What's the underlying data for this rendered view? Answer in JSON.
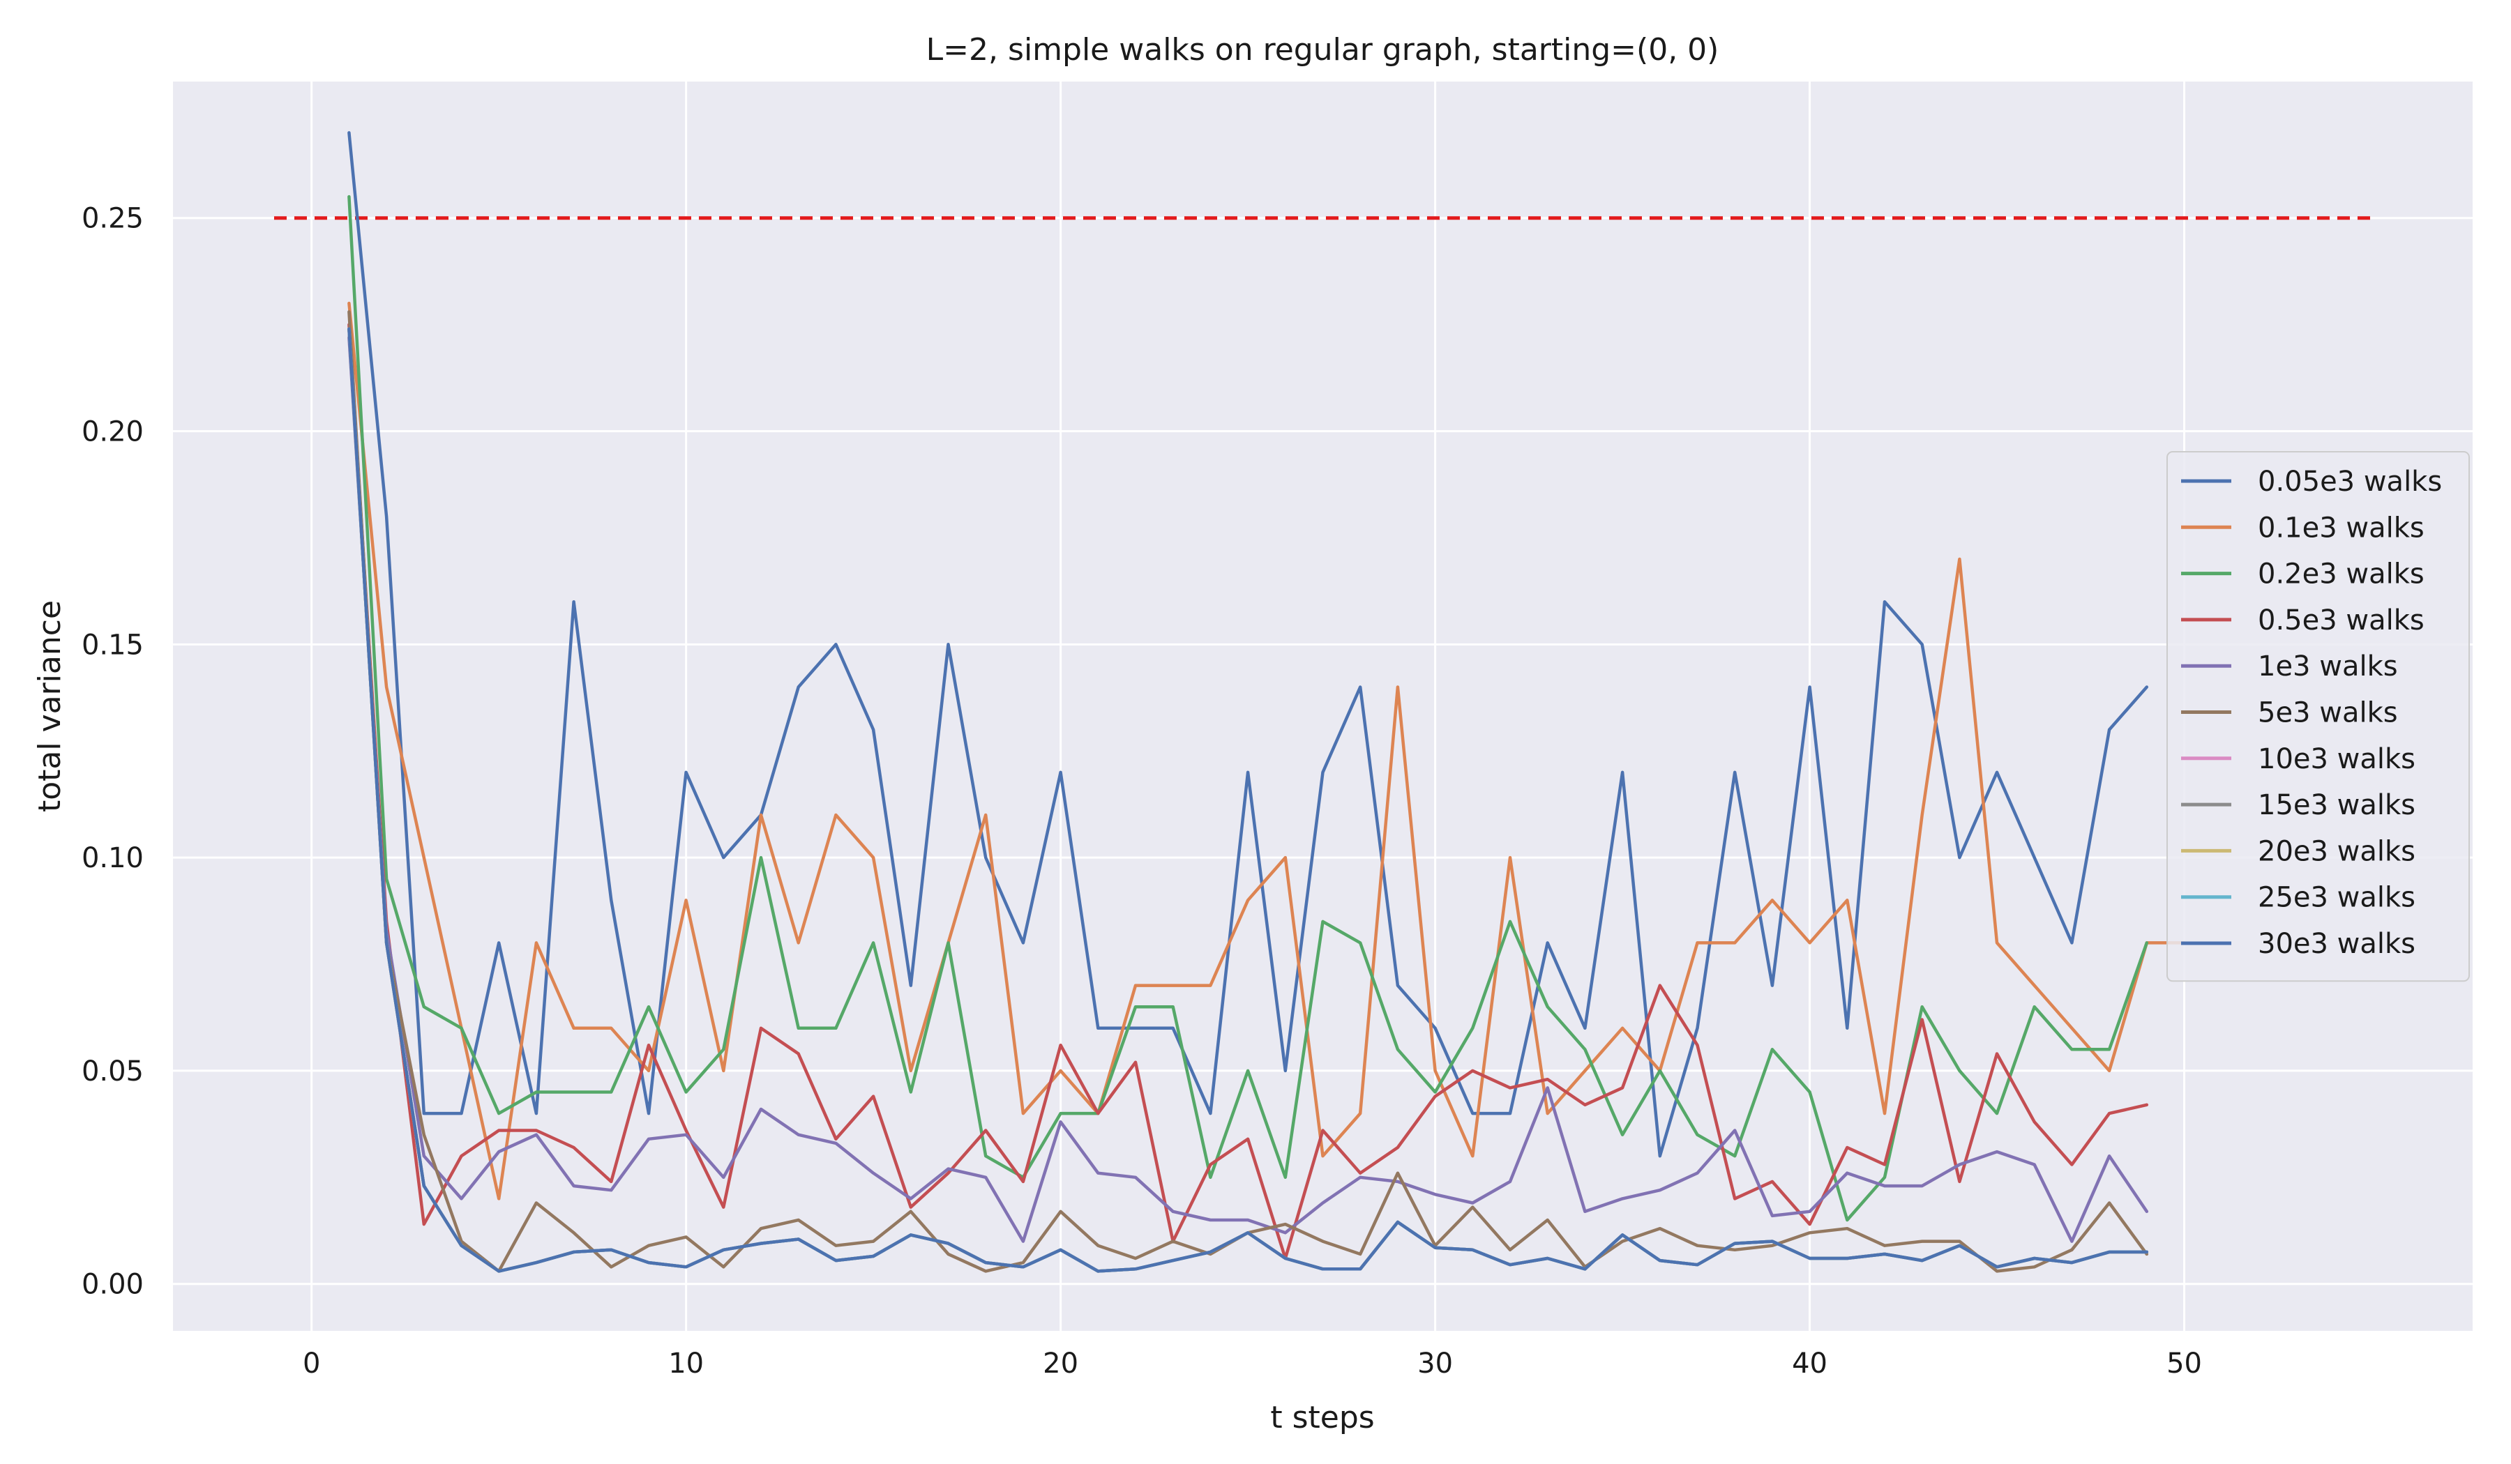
{
  "chart_data": {
    "type": "line",
    "title": "L=2, simple walks on regular graph, starting=(0, 0)",
    "xlabel": "t steps",
    "ylabel": "total variance",
    "xlim": [
      -3.7,
      57.7
    ],
    "ylim": [
      -0.011,
      0.282
    ],
    "xticks": [
      0,
      10,
      20,
      30,
      40,
      50
    ],
    "yticks": [
      0.0,
      0.05,
      0.1,
      0.15,
      0.2,
      0.25
    ],
    "ytick_labels": [
      "0.00",
      "0.05",
      "0.10",
      "0.15",
      "0.20",
      "0.25"
    ],
    "grid": true,
    "legend_position": "center-right",
    "reference_line": {
      "y": 0.25,
      "x_range": [
        -1,
        55
      ],
      "color": "#e31a1c",
      "style": "dashed"
    },
    "x": [
      1,
      2,
      3,
      4,
      5,
      6,
      7,
      8,
      9,
      10,
      11,
      12,
      13,
      14,
      15,
      16,
      17,
      18,
      19,
      20,
      21,
      22,
      23,
      24,
      25,
      26,
      27,
      28,
      29,
      30,
      31,
      32,
      33,
      34,
      35,
      36,
      37,
      38,
      39,
      40,
      41,
      42,
      43,
      44,
      45,
      46,
      47,
      48,
      49,
      50
    ],
    "series": [
      {
        "name": "0.05e3 walks",
        "color": "#4c72b0",
        "values": [
          0.27,
          0.18,
          0.04,
          0.04,
          0.08,
          0.04,
          0.16,
          0.09,
          0.04,
          0.12,
          0.1,
          0.11,
          0.14,
          0.15,
          0.13,
          0.07,
          0.15,
          0.1,
          0.08,
          0.12,
          0.06,
          0.06,
          0.06,
          0.04,
          0.12,
          0.05,
          0.12,
          0.14,
          0.07,
          0.06,
          0.04,
          0.04,
          0.08,
          0.06,
          0.12,
          0.03,
          0.06,
          0.12,
          0.07,
          0.14,
          0.06,
          0.16,
          0.15,
          0.1,
          0.12,
          0.1,
          0.08,
          0.13,
          0.14,
          null
        ]
      },
      {
        "name": "0.1e3 walks",
        "color": "#dd8452",
        "values": [
          0.23,
          0.14,
          0.1,
          0.06,
          0.02,
          0.08,
          0.06,
          0.06,
          0.05,
          0.09,
          0.05,
          0.11,
          0.08,
          0.11,
          0.1,
          0.05,
          0.08,
          0.11,
          0.04,
          0.05,
          0.04,
          0.07,
          0.07,
          0.07,
          0.09,
          0.1,
          0.03,
          0.04,
          0.14,
          0.05,
          0.03,
          0.1,
          0.04,
          0.05,
          0.06,
          0.05,
          0.08,
          0.08,
          0.09,
          0.08,
          0.09,
          0.04,
          0.11,
          0.17,
          0.08,
          0.07,
          0.06,
          0.05,
          0.08,
          0.08
        ]
      },
      {
        "name": "0.2e3 walks",
        "color": "#55a868",
        "values": [
          0.255,
          0.095,
          0.065,
          0.06,
          0.04,
          0.045,
          0.045,
          0.045,
          0.065,
          0.045,
          0.055,
          0.1,
          0.06,
          0.06,
          0.08,
          0.045,
          0.08,
          0.03,
          0.025,
          0.04,
          0.04,
          0.065,
          0.065,
          0.025,
          0.05,
          0.025,
          0.085,
          0.08,
          0.055,
          0.045,
          0.06,
          0.085,
          0.065,
          0.055,
          0.035,
          0.05,
          0.035,
          0.03,
          0.055,
          0.045,
          0.015,
          0.025,
          0.065,
          0.05,
          0.04,
          0.065,
          0.055,
          0.055,
          0.08,
          null
        ]
      },
      {
        "name": "0.5e3 walks",
        "color": "#c44e52",
        "values": [
          0.225,
          0.085,
          0.014,
          0.03,
          0.036,
          0.036,
          0.032,
          0.024,
          0.056,
          0.036,
          0.018,
          0.06,
          0.054,
          0.034,
          0.044,
          0.018,
          0.026,
          0.036,
          0.024,
          0.056,
          0.04,
          0.052,
          0.01,
          0.028,
          0.034,
          0.006,
          0.036,
          0.026,
          0.032,
          0.044,
          0.05,
          0.046,
          0.048,
          0.042,
          0.046,
          0.07,
          0.056,
          0.02,
          0.024,
          0.014,
          0.032,
          0.028,
          0.062,
          0.024,
          0.054,
          0.038,
          0.028,
          0.04,
          0.042,
          null
        ]
      },
      {
        "name": "1e3 walks",
        "color": "#8172b3",
        "values": [
          0.222,
          0.083,
          0.03,
          0.02,
          0.031,
          0.035,
          0.023,
          0.022,
          0.034,
          0.035,
          0.025,
          0.041,
          0.035,
          0.033,
          0.026,
          0.02,
          0.027,
          0.025,
          0.01,
          0.038,
          0.026,
          0.025,
          0.017,
          0.015,
          0.015,
          0.012,
          0.019,
          0.025,
          0.024,
          0.021,
          0.019,
          0.024,
          0.046,
          0.017,
          0.02,
          0.022,
          0.026,
          0.036,
          0.016,
          0.017,
          0.026,
          0.023,
          0.023,
          0.028,
          0.031,
          0.028,
          0.01,
          0.03,
          0.017,
          null
        ]
      },
      {
        "name": "5e3 walks",
        "color": "#937860",
        "values": [
          0.228,
          0.08,
          0.035,
          0.01,
          0.003,
          0.019,
          0.012,
          0.004,
          0.009,
          0.011,
          0.004,
          0.013,
          0.015,
          0.009,
          0.01,
          0.017,
          0.007,
          0.003,
          0.005,
          0.017,
          0.009,
          0.006,
          0.01,
          0.007,
          0.012,
          0.014,
          0.01,
          0.007,
          0.026,
          0.009,
          0.018,
          0.008,
          0.015,
          0.004,
          0.01,
          0.013,
          0.009,
          0.008,
          0.009,
          0.012,
          0.013,
          0.009,
          0.01,
          0.01,
          0.003,
          0.004,
          0.008,
          0.019,
          0.007,
          null
        ]
      },
      {
        "name": "10e3 walks",
        "color": "#da8bc3",
        "values": [
          0.224,
          0.08,
          0.023,
          0.009,
          0.003,
          0.005,
          0.0075,
          0.008,
          0.005,
          0.004,
          0.008,
          0.0095,
          0.0105,
          0.0055,
          0.0065,
          0.0115,
          0.0095,
          0.005,
          0.004,
          0.008,
          0.003,
          0.0035,
          0.0055,
          0.0075,
          0.012,
          0.006,
          0.0035,
          0.0035,
          0.0145,
          0.0085,
          0.008,
          0.0045,
          0.006,
          0.0035,
          0.0115,
          0.0055,
          0.0045,
          0.0095,
          0.01,
          0.006,
          0.006,
          0.007,
          0.0055,
          0.009,
          0.004,
          0.006,
          0.005,
          0.0075,
          0.0075,
          null
        ]
      },
      {
        "name": "15e3 walks",
        "color": "#8c8c8c",
        "values": [
          0.224,
          0.08,
          0.023,
          0.009,
          0.003,
          0.005,
          0.0075,
          0.008,
          0.005,
          0.004,
          0.008,
          0.0095,
          0.0105,
          0.0055,
          0.0065,
          0.0115,
          0.0095,
          0.005,
          0.004,
          0.008,
          0.003,
          0.0035,
          0.0055,
          0.0075,
          0.012,
          0.006,
          0.0035,
          0.0035,
          0.0145,
          0.0085,
          0.008,
          0.0045,
          0.006,
          0.0035,
          0.0115,
          0.0055,
          0.0045,
          0.0095,
          0.01,
          0.006,
          0.006,
          0.007,
          0.0055,
          0.009,
          0.004,
          0.006,
          0.005,
          0.0075,
          0.0075,
          null
        ]
      },
      {
        "name": "20e3 walks",
        "color": "#ccb974",
        "values": [
          0.224,
          0.08,
          0.023,
          0.009,
          0.003,
          0.005,
          0.0075,
          0.008,
          0.005,
          0.004,
          0.008,
          0.0095,
          0.0105,
          0.0055,
          0.0065,
          0.0115,
          0.0095,
          0.005,
          0.004,
          0.008,
          0.003,
          0.0035,
          0.0055,
          0.0075,
          0.012,
          0.006,
          0.0035,
          0.0035,
          0.0145,
          0.0085,
          0.008,
          0.0045,
          0.006,
          0.0035,
          0.0115,
          0.0055,
          0.0045,
          0.0095,
          0.01,
          0.006,
          0.006,
          0.007,
          0.0055,
          0.009,
          0.004,
          0.006,
          0.005,
          0.0075,
          0.0075,
          null
        ]
      },
      {
        "name": "25e3 walks",
        "color": "#64b5cd",
        "values": [
          0.224,
          0.08,
          0.023,
          0.009,
          0.003,
          0.005,
          0.0075,
          0.008,
          0.005,
          0.004,
          0.008,
          0.0095,
          0.0105,
          0.0055,
          0.0065,
          0.0115,
          0.0095,
          0.005,
          0.004,
          0.008,
          0.003,
          0.0035,
          0.0055,
          0.0075,
          0.012,
          0.006,
          0.0035,
          0.0035,
          0.0145,
          0.0085,
          0.008,
          0.0045,
          0.006,
          0.0035,
          0.0115,
          0.0055,
          0.0045,
          0.0095,
          0.01,
          0.006,
          0.006,
          0.007,
          0.0055,
          0.009,
          0.004,
          0.006,
          0.005,
          0.0075,
          0.0075,
          null
        ]
      },
      {
        "name": "30e3 walks",
        "color": "#4c72b0",
        "values": [
          0.224,
          0.08,
          0.023,
          0.009,
          0.003,
          0.005,
          0.0075,
          0.008,
          0.005,
          0.004,
          0.008,
          0.0095,
          0.0105,
          0.0055,
          0.0065,
          0.0115,
          0.0095,
          0.005,
          0.004,
          0.008,
          0.003,
          0.0035,
          0.0055,
          0.0075,
          0.012,
          0.006,
          0.0035,
          0.0035,
          0.0145,
          0.0085,
          0.008,
          0.0045,
          0.006,
          0.0035,
          0.0115,
          0.0055,
          0.0045,
          0.0095,
          0.01,
          0.006,
          0.006,
          0.007,
          0.0055,
          0.009,
          0.004,
          0.006,
          0.005,
          0.0075,
          0.0075,
          null
        ]
      }
    ]
  },
  "colors": {
    "plot_background": "#eaeaf2",
    "grid": "#ffffff",
    "reference_line": "#e31a1c"
  }
}
